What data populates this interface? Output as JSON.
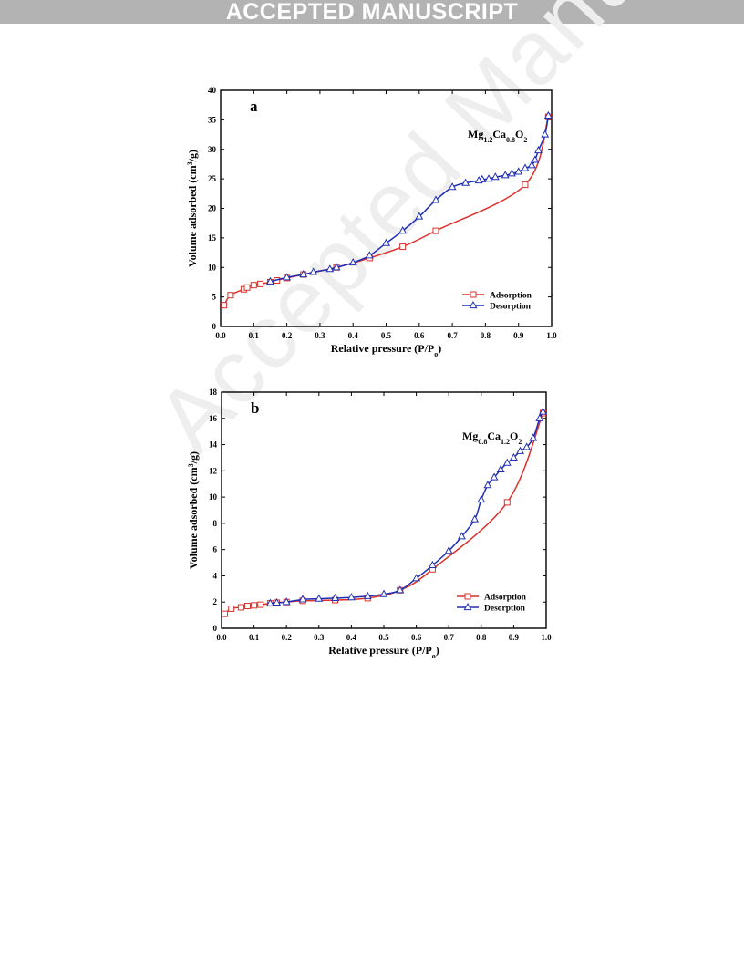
{
  "banner": {
    "text": "ACCEPTED MANUSCRIPT"
  },
  "watermark": {
    "text": "Accepted Manuscript"
  },
  "colors": {
    "adsorption": "#d9312b",
    "desorption": "#1f2fb3",
    "banner_bg": "#b3b3b3",
    "watermark": "#eeeeee"
  },
  "chart_data": [
    {
      "type": "line",
      "panel_label": "a",
      "sample": {
        "base": "Mg",
        "sub1": "1.2",
        "el2": "Ca",
        "sub2": "0.8",
        "el3": "O",
        "sub3": "2"
      },
      "xlabel": {
        "text": "Relative pressure (P/P",
        "sub": "o",
        "close": ")"
      },
      "ylabel": {
        "pre": "Volume adsorbed (cm",
        "sup": "3",
        "post": "/g)"
      },
      "xlim": [
        0.0,
        1.0
      ],
      "ylim": [
        0,
        40
      ],
      "xticks": [
        "0.0",
        "0.1",
        "0.2",
        "0.3",
        "0.4",
        "0.5",
        "0.6",
        "0.7",
        "0.8",
        "0.9",
        "1.0"
      ],
      "yticks": [
        "0",
        "5",
        "10",
        "15",
        "20",
        "25",
        "30",
        "35",
        "40"
      ],
      "legend_position": "bottom-right",
      "series": [
        {
          "name": "Adsorption",
          "marker": "square",
          "x": [
            0.01,
            0.03,
            0.07,
            0.08,
            0.1,
            0.12,
            0.15,
            0.17,
            0.2,
            0.25,
            0.35,
            0.45,
            0.55,
            0.65,
            0.92,
            0.99
          ],
          "y": [
            3.6,
            5.3,
            6.3,
            6.6,
            7.0,
            7.2,
            7.5,
            7.8,
            8.2,
            8.8,
            10.0,
            11.6,
            13.5,
            16.2,
            24.0,
            35.5
          ]
        },
        {
          "name": "Desorption",
          "marker": "triangle",
          "x": [
            0.99,
            0.98,
            0.96,
            0.95,
            0.94,
            0.92,
            0.9,
            0.88,
            0.86,
            0.83,
            0.81,
            0.79,
            0.78,
            0.74,
            0.7,
            0.65,
            0.6,
            0.55,
            0.5,
            0.45,
            0.4,
            0.35,
            0.33,
            0.28,
            0.25,
            0.2,
            0.15
          ],
          "y": [
            35.7,
            32.5,
            29.8,
            28.2,
            27.3,
            26.8,
            26.2,
            25.9,
            25.6,
            25.3,
            25.0,
            24.9,
            24.7,
            24.3,
            23.6,
            21.4,
            18.6,
            16.2,
            14.1,
            12.0,
            10.8,
            10.0,
            9.7,
            9.2,
            8.8,
            8.3,
            7.6
          ]
        }
      ]
    },
    {
      "type": "line",
      "panel_label": "b",
      "sample": {
        "base": "Mg",
        "sub1": "0.8",
        "el2": "Ca",
        "sub2": "1.2",
        "el3": "O",
        "sub3": "2"
      },
      "xlabel": {
        "text": "Relative pressure (P/P",
        "sub": "o",
        "close": ")"
      },
      "ylabel": {
        "pre": "Volume adsorbed (cm",
        "sup": "3",
        "post": "/g)"
      },
      "xlim": [
        0.0,
        1.0
      ],
      "ylim": [
        0,
        18
      ],
      "xticks": [
        "0.0",
        "0.1",
        "0.2",
        "0.3",
        "0.4",
        "0.5",
        "0.6",
        "0.7",
        "0.8",
        "0.9",
        "1.0"
      ],
      "yticks": [
        "0",
        "2",
        "4",
        "6",
        "8",
        "10",
        "12",
        "14",
        "16",
        "18"
      ],
      "legend_position": "bottom-right",
      "series": [
        {
          "name": "Adsorption",
          "marker": "square",
          "x": [
            0.01,
            0.03,
            0.06,
            0.08,
            0.1,
            0.12,
            0.15,
            0.17,
            0.2,
            0.25,
            0.35,
            0.45,
            0.55,
            0.65,
            0.88,
            0.99
          ],
          "y": [
            1.1,
            1.5,
            1.6,
            1.7,
            1.75,
            1.8,
            1.9,
            1.95,
            2.0,
            2.1,
            2.15,
            2.3,
            2.9,
            4.5,
            9.6,
            16.4
          ]
        },
        {
          "name": "Desorption",
          "marker": "triangle",
          "x": [
            0.99,
            0.98,
            0.96,
            0.94,
            0.92,
            0.9,
            0.88,
            0.86,
            0.84,
            0.82,
            0.8,
            0.78,
            0.74,
            0.7,
            0.65,
            0.6,
            0.55,
            0.5,
            0.45,
            0.4,
            0.35,
            0.3,
            0.25,
            0.2,
            0.17,
            0.15
          ],
          "y": [
            16.5,
            16.0,
            14.5,
            13.8,
            13.5,
            13.0,
            12.6,
            12.1,
            11.5,
            10.9,
            9.8,
            8.3,
            7.0,
            5.9,
            4.8,
            3.8,
            2.9,
            2.6,
            2.45,
            2.35,
            2.3,
            2.25,
            2.2,
            2.0,
            1.95,
            1.9
          ]
        }
      ]
    }
  ]
}
